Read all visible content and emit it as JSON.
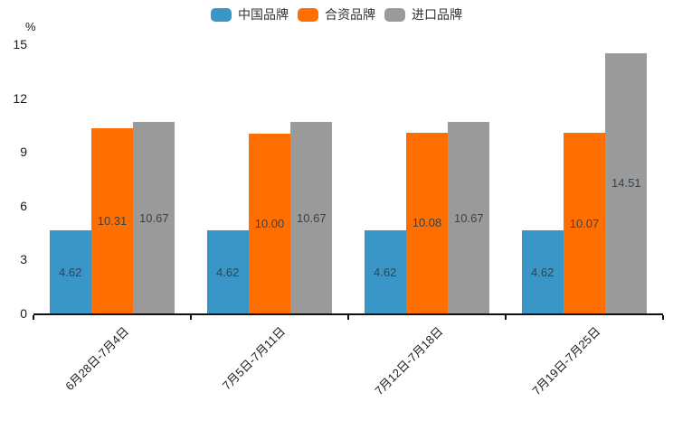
{
  "chart_data": {
    "type": "bar",
    "title": "",
    "categories": [
      "6月28日-7月4日",
      "7月5日-7月11日",
      "7月12日-7月18日",
      "7月19日-7月25日"
    ],
    "series": [
      {
        "name": "中国品牌",
        "color": "#3996C7",
        "values": [
          4.62,
          4.62,
          4.62,
          4.62
        ]
      },
      {
        "name": "合资品牌",
        "color": "#FF6E00",
        "values": [
          10.31,
          10.0,
          10.08,
          10.07
        ]
      },
      {
        "name": "进口品牌",
        "color": "#9A9A9A",
        "values": [
          10.67,
          10.67,
          10.67,
          14.51
        ]
      }
    ],
    "xlabel": "",
    "ylabel": "%",
    "ylim": [
      0,
      15
    ],
    "yticks": [
      0,
      3,
      6,
      9,
      12,
      15
    ],
    "grid": false,
    "legend_position": "top-center",
    "value_labels": "inside-center, two decimals"
  },
  "colors": {
    "axis": "#111111",
    "tick_label": "#1a1a1a",
    "value_label": "#37424a",
    "legend_label": "#333333",
    "background": "#ffffff"
  }
}
